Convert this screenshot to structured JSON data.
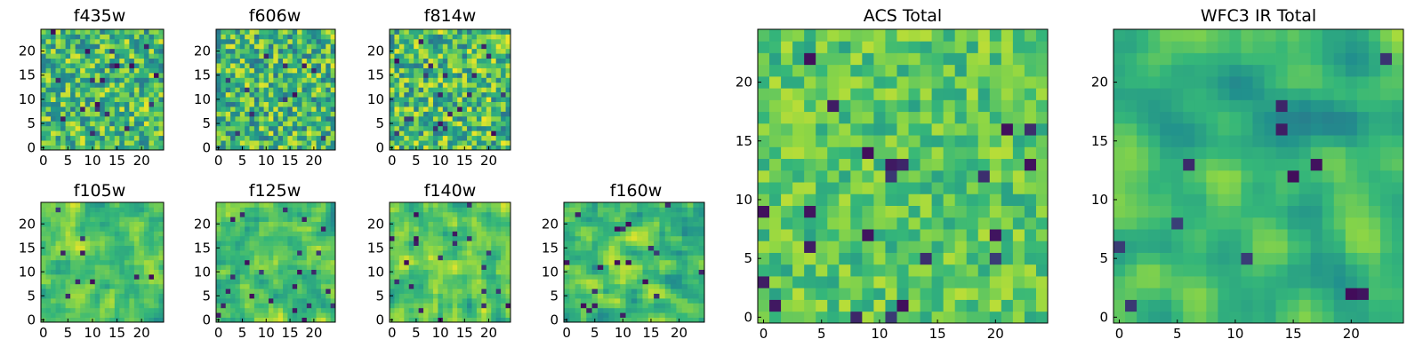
{
  "figure": {
    "colormap": [
      "#440154",
      "#31688e",
      "#21908d",
      "#35b779",
      "#90d743",
      "#fde725"
    ],
    "panels": [
      {
        "key": "f435w",
        "title": "f435w",
        "grid_n": 25,
        "xticks": [
          0,
          5,
          10,
          15,
          20
        ],
        "yticks": [
          0,
          5,
          10,
          15,
          20
        ],
        "seed": 11,
        "mean": 0.62,
        "noise": 0.34,
        "smooth": 0
      },
      {
        "key": "f606w",
        "title": "f606w",
        "grid_n": 25,
        "xticks": [
          0,
          5,
          10,
          15,
          20
        ],
        "yticks": [
          0,
          5,
          10,
          15,
          20
        ],
        "seed": 23,
        "mean": 0.6,
        "noise": 0.36,
        "smooth": 0
      },
      {
        "key": "f814w",
        "title": "f814w",
        "grid_n": 25,
        "xticks": [
          0,
          5,
          10,
          15,
          20
        ],
        "yticks": [
          0,
          5,
          10,
          15,
          20
        ],
        "seed": 37,
        "mean": 0.62,
        "noise": 0.36,
        "smooth": 0
      },
      {
        "key": "f105w",
        "title": "f105w",
        "grid_n": 25,
        "xticks": [
          0,
          5,
          10,
          15,
          20
        ],
        "yticks": [
          0,
          5,
          10,
          15,
          20
        ],
        "seed": 41,
        "mean": 0.66,
        "noise": 0.28,
        "smooth": 1
      },
      {
        "key": "f125w",
        "title": "f125w",
        "grid_n": 25,
        "xticks": [
          0,
          5,
          10,
          15,
          20
        ],
        "yticks": [
          0,
          5,
          10,
          15,
          20
        ],
        "seed": 53,
        "mean": 0.64,
        "noise": 0.3,
        "smooth": 1
      },
      {
        "key": "f140w",
        "title": "f140w",
        "grid_n": 25,
        "xticks": [
          0,
          5,
          10,
          15,
          20
        ],
        "yticks": [
          0,
          5,
          10,
          15,
          20
        ],
        "seed": 67,
        "mean": 0.66,
        "noise": 0.28,
        "smooth": 1
      },
      {
        "key": "f160w",
        "title": "f160w",
        "grid_n": 25,
        "xticks": [
          0,
          5,
          10,
          15,
          20
        ],
        "yticks": [
          0,
          5,
          10,
          15,
          20
        ],
        "seed": 71,
        "mean": 0.64,
        "noise": 0.3,
        "smooth": 1
      },
      {
        "key": "acs_total",
        "title": "ACS Total",
        "grid_n": 25,
        "xticks": [
          0,
          5,
          10,
          15,
          20
        ],
        "yticks": [
          0,
          5,
          10,
          15,
          20
        ],
        "seed": 83,
        "mean": 0.68,
        "noise": 0.2,
        "smooth": 0
      },
      {
        "key": "wfc3_total",
        "title": "WFC3 IR Total",
        "grid_n": 25,
        "xticks": [
          0,
          5,
          10,
          15,
          20
        ],
        "yticks": [
          0,
          5,
          10,
          15,
          20
        ],
        "seed": 97,
        "mean": 0.58,
        "noise": 0.26,
        "smooth": 2
      }
    ]
  },
  "chart_data": [
    {
      "type": "heatmap",
      "title": "f435w",
      "x": [
        0,
        24
      ],
      "y": [
        0,
        24
      ],
      "xlim": [
        -0.5,
        24.5
      ],
      "ylim": [
        -0.5,
        24.5
      ]
    },
    {
      "type": "heatmap",
      "title": "f606w",
      "x": [
        0,
        24
      ],
      "y": [
        0,
        24
      ],
      "xlim": [
        -0.5,
        24.5
      ],
      "ylim": [
        -0.5,
        24.5
      ]
    },
    {
      "type": "heatmap",
      "title": "f814w",
      "x": [
        0,
        24
      ],
      "y": [
        0,
        24
      ],
      "xlim": [
        -0.5,
        24.5
      ],
      "ylim": [
        -0.5,
        24.5
      ]
    },
    {
      "type": "heatmap",
      "title": "f105w",
      "x": [
        0,
        24
      ],
      "y": [
        0,
        24
      ],
      "xlim": [
        -0.5,
        24.5
      ],
      "ylim": [
        -0.5,
        24.5
      ]
    },
    {
      "type": "heatmap",
      "title": "f125w",
      "x": [
        0,
        24
      ],
      "y": [
        0,
        24
      ],
      "xlim": [
        -0.5,
        24.5
      ],
      "ylim": [
        -0.5,
        24.5
      ]
    },
    {
      "type": "heatmap",
      "title": "f140w",
      "x": [
        0,
        24
      ],
      "y": [
        0,
        24
      ],
      "xlim": [
        -0.5,
        24.5
      ],
      "ylim": [
        -0.5,
        24.5
      ]
    },
    {
      "type": "heatmap",
      "title": "f160w",
      "x": [
        0,
        24
      ],
      "y": [
        0,
        24
      ],
      "xlim": [
        -0.5,
        24.5
      ],
      "ylim": [
        -0.5,
        24.5
      ]
    },
    {
      "type": "heatmap",
      "title": "ACS Total",
      "x": [
        0,
        24
      ],
      "y": [
        0,
        24
      ],
      "xlim": [
        -0.5,
        24.5
      ],
      "ylim": [
        -0.5,
        24.5
      ]
    },
    {
      "type": "heatmap",
      "title": "WFC3 IR Total",
      "x": [
        0,
        24
      ],
      "y": [
        0,
        24
      ],
      "xlim": [
        -0.5,
        24.5
      ],
      "ylim": [
        -0.5,
        24.5
      ]
    }
  ]
}
